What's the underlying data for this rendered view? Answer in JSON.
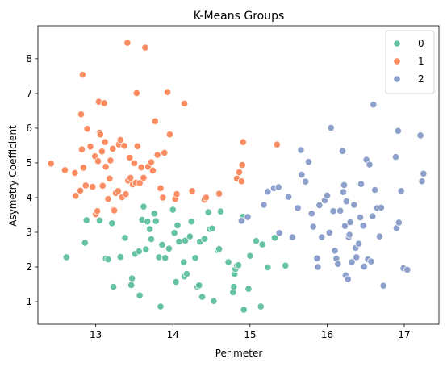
{
  "chart_data": {
    "type": "scatter",
    "title": "K-Means Groups",
    "xlabel": "Perimeter",
    "ylabel": "Asymetry Coefficient",
    "xlim": [
      12.25,
      17.45
    ],
    "ylim": [
      0.35,
      8.95
    ],
    "xticks": [
      13,
      14,
      15,
      16,
      17
    ],
    "yticks": [
      1,
      2,
      3,
      4,
      5,
      6,
      7,
      8
    ],
    "grid": false,
    "legend_position": "top-right",
    "series": [
      {
        "name": "0",
        "color": "#66c2a5",
        "points": [
          [
            12.62,
            2.28
          ],
          [
            12.86,
            2.7
          ],
          [
            12.88,
            3.35
          ],
          [
            13.01,
            3.53
          ],
          [
            13.05,
            3.34
          ],
          [
            13.13,
            2.24
          ],
          [
            13.16,
            2.22
          ],
          [
            13.21,
            3.26
          ],
          [
            13.23,
            1.43
          ],
          [
            13.32,
            2.29
          ],
          [
            13.38,
            2.84
          ],
          [
            13.46,
            1.48
          ],
          [
            13.47,
            1.67
          ],
          [
            13.51,
            2.38
          ],
          [
            13.56,
            2.45
          ],
          [
            13.57,
            1.18
          ],
          [
            13.6,
            3.36
          ],
          [
            13.62,
            3.74
          ],
          [
            13.65,
            2.51
          ],
          [
            13.67,
            3.31
          ],
          [
            13.7,
            3.09
          ],
          [
            13.72,
            2.8
          ],
          [
            13.76,
            3.54
          ],
          [
            13.78,
            3.32
          ],
          [
            13.82,
            2.28
          ],
          [
            13.84,
            0.86
          ],
          [
            13.86,
            2.64
          ],
          [
            13.9,
            2.26
          ],
          [
            13.95,
            2.53
          ],
          [
            14.0,
            3.65
          ],
          [
            14.02,
            2.98
          ],
          [
            14.04,
            1.57
          ],
          [
            14.06,
            3.2
          ],
          [
            14.08,
            2.73
          ],
          [
            14.14,
            2.14
          ],
          [
            14.15,
            1.73
          ],
          [
            14.16,
            2.76
          ],
          [
            14.18,
            1.8
          ],
          [
            14.22,
            2.88
          ],
          [
            14.24,
            3.31
          ],
          [
            14.29,
            2.26
          ],
          [
            14.32,
            1.43
          ],
          [
            14.34,
            1.47
          ],
          [
            14.35,
            2.73
          ],
          [
            14.38,
            1.14
          ],
          [
            14.41,
            2.81
          ],
          [
            14.46,
            3.58
          ],
          [
            14.48,
            3.09
          ],
          [
            14.51,
            3.11
          ],
          [
            14.53,
            1.02
          ],
          [
            14.58,
            2.49
          ],
          [
            14.6,
            2.52
          ],
          [
            14.62,
            3.6
          ],
          [
            14.72,
            2.14
          ],
          [
            14.78,
            1.27
          ],
          [
            14.79,
            1.43
          ],
          [
            14.8,
            1.8
          ],
          [
            14.81,
            1.94
          ],
          [
            14.83,
            2.04
          ],
          [
            14.85,
            2.05
          ],
          [
            14.9,
            3.33
          ],
          [
            14.91,
            3.45
          ],
          [
            14.92,
            0.77
          ],
          [
            14.98,
            1.37
          ],
          [
            15.0,
            2.32
          ],
          [
            15.08,
            2.75
          ],
          [
            15.14,
            0.86
          ],
          [
            15.16,
            2.65
          ],
          [
            15.23,
            1.99
          ],
          [
            15.32,
            2.84
          ],
          [
            15.46,
            2.04
          ]
        ]
      },
      {
        "name": "1",
        "color": "#fc8d62",
        "points": [
          [
            12.42,
            4.98
          ],
          [
            12.6,
            4.79
          ],
          [
            12.73,
            4.71
          ],
          [
            12.74,
            4.05
          ],
          [
            12.8,
            4.2
          ],
          [
            12.81,
            6.4
          ],
          [
            12.82,
            5.39
          ],
          [
            12.83,
            7.54
          ],
          [
            12.84,
            4.86
          ],
          [
            12.87,
            4.35
          ],
          [
            12.89,
            5.98
          ],
          [
            12.93,
            5.47
          ],
          [
            12.96,
            4.31
          ],
          [
            12.99,
            5.19
          ],
          [
            13.0,
            3.52
          ],
          [
            13.02,
            3.61
          ],
          [
            13.03,
            5.05
          ],
          [
            13.04,
            6.76
          ],
          [
            13.05,
            5.87
          ],
          [
            13.06,
            5.82
          ],
          [
            13.08,
            5.33
          ],
          [
            13.09,
            4.34
          ],
          [
            13.11,
            6.72
          ],
          [
            13.12,
            5.6
          ],
          [
            13.13,
            4.89
          ],
          [
            13.16,
            3.96
          ],
          [
            13.18,
            4.55
          ],
          [
            13.19,
            5.07
          ],
          [
            13.22,
            5.41
          ],
          [
            13.23,
            3.65
          ],
          [
            13.24,
            3.63
          ],
          [
            13.26,
            4.13
          ],
          [
            13.29,
            4.19
          ],
          [
            13.3,
            5.53
          ],
          [
            13.32,
            5.66
          ],
          [
            13.34,
            4.01
          ],
          [
            13.37,
            5.49
          ],
          [
            13.39,
            4.1
          ],
          [
            13.41,
            8.46
          ],
          [
            13.42,
            4.49
          ],
          [
            13.44,
            5.15
          ],
          [
            13.45,
            4.57
          ],
          [
            13.48,
            4.38
          ],
          [
            13.5,
            4.99
          ],
          [
            13.52,
            4.43
          ],
          [
            13.53,
            7.01
          ],
          [
            13.54,
            5.48
          ],
          [
            13.57,
            4.42
          ],
          [
            13.59,
            4.87
          ],
          [
            13.62,
            4.57
          ],
          [
            13.64,
            8.32
          ],
          [
            13.68,
            4.89
          ],
          [
            13.72,
            5.02
          ],
          [
            13.74,
            4.78
          ],
          [
            13.77,
            6.2
          ],
          [
            13.8,
            5.23
          ],
          [
            13.84,
            4.27
          ],
          [
            13.87,
            4.0
          ],
          [
            13.89,
            5.29
          ],
          [
            13.93,
            7.04
          ],
          [
            13.96,
            5.82
          ],
          [
            14.03,
            3.96
          ],
          [
            14.05,
            4.1
          ],
          [
            14.15,
            6.71
          ],
          [
            14.25,
            4.19
          ],
          [
            14.41,
            3.94
          ],
          [
            14.43,
            4.0
          ],
          [
            14.6,
            4.11
          ],
          [
            14.83,
            4.55
          ],
          [
            14.86,
            4.73
          ],
          [
            14.89,
            4.47
          ],
          [
            14.9,
            4.94
          ],
          [
            14.91,
            5.6
          ],
          [
            15.35,
            5.53
          ]
        ]
      },
      {
        "name": "2",
        "color": "#8da0cb",
        "points": [
          [
            14.89,
            3.33
          ],
          [
            14.97,
            3.44
          ],
          [
            15.18,
            3.79
          ],
          [
            15.23,
            4.17
          ],
          [
            15.31,
            4.27
          ],
          [
            15.37,
            4.3
          ],
          [
            15.38,
            2.98
          ],
          [
            15.5,
            4.02
          ],
          [
            15.55,
            2.86
          ],
          [
            15.62,
            3.7
          ],
          [
            15.66,
            5.37
          ],
          [
            15.67,
            4.66
          ],
          [
            15.72,
            4.46
          ],
          [
            15.76,
            5.03
          ],
          [
            15.8,
            3.54
          ],
          [
            15.82,
            3.16
          ],
          [
            15.87,
            2.25
          ],
          [
            15.88,
            2.0
          ],
          [
            15.9,
            3.78
          ],
          [
            15.93,
            2.86
          ],
          [
            15.97,
            3.92
          ],
          [
            16.0,
            4.06
          ],
          [
            16.03,
            2.99
          ],
          [
            16.05,
            6.01
          ],
          [
            16.08,
            3.61
          ],
          [
            16.1,
            2.47
          ],
          [
            16.12,
            2.24
          ],
          [
            16.14,
            2.09
          ],
          [
            16.17,
            3.62
          ],
          [
            16.2,
            5.34
          ],
          [
            16.21,
            4.16
          ],
          [
            16.22,
            4.36
          ],
          [
            16.23,
            3.18
          ],
          [
            16.24,
            1.76
          ],
          [
            16.25,
            3.89
          ],
          [
            16.27,
            1.65
          ],
          [
            16.28,
            2.86
          ],
          [
            16.29,
            2.93
          ],
          [
            16.3,
            3.29
          ],
          [
            16.32,
            2.14
          ],
          [
            16.35,
            3.79
          ],
          [
            16.37,
            2.55
          ],
          [
            16.38,
            2.28
          ],
          [
            16.41,
            2.67
          ],
          [
            16.43,
            3.43
          ],
          [
            16.44,
            4.39
          ],
          [
            16.47,
            3.19
          ],
          [
            16.48,
            2.01
          ],
          [
            16.51,
            5.09
          ],
          [
            16.53,
            2.22
          ],
          [
            16.55,
            4.95
          ],
          [
            16.57,
            2.16
          ],
          [
            16.59,
            3.46
          ],
          [
            16.6,
            6.68
          ],
          [
            16.62,
            4.22
          ],
          [
            16.65,
            3.7
          ],
          [
            16.68,
            2.88
          ],
          [
            16.7,
            3.71
          ],
          [
            16.73,
            1.46
          ],
          [
            16.89,
            5.17
          ],
          [
            16.9,
            3.12
          ],
          [
            16.92,
            5.92
          ],
          [
            16.93,
            3.28
          ],
          [
            16.96,
            4.19
          ],
          [
            16.99,
            1.96
          ],
          [
            17.04,
            1.92
          ],
          [
            17.21,
            5.79
          ],
          [
            17.23,
            4.47
          ],
          [
            17.25,
            4.69
          ]
        ]
      }
    ]
  }
}
